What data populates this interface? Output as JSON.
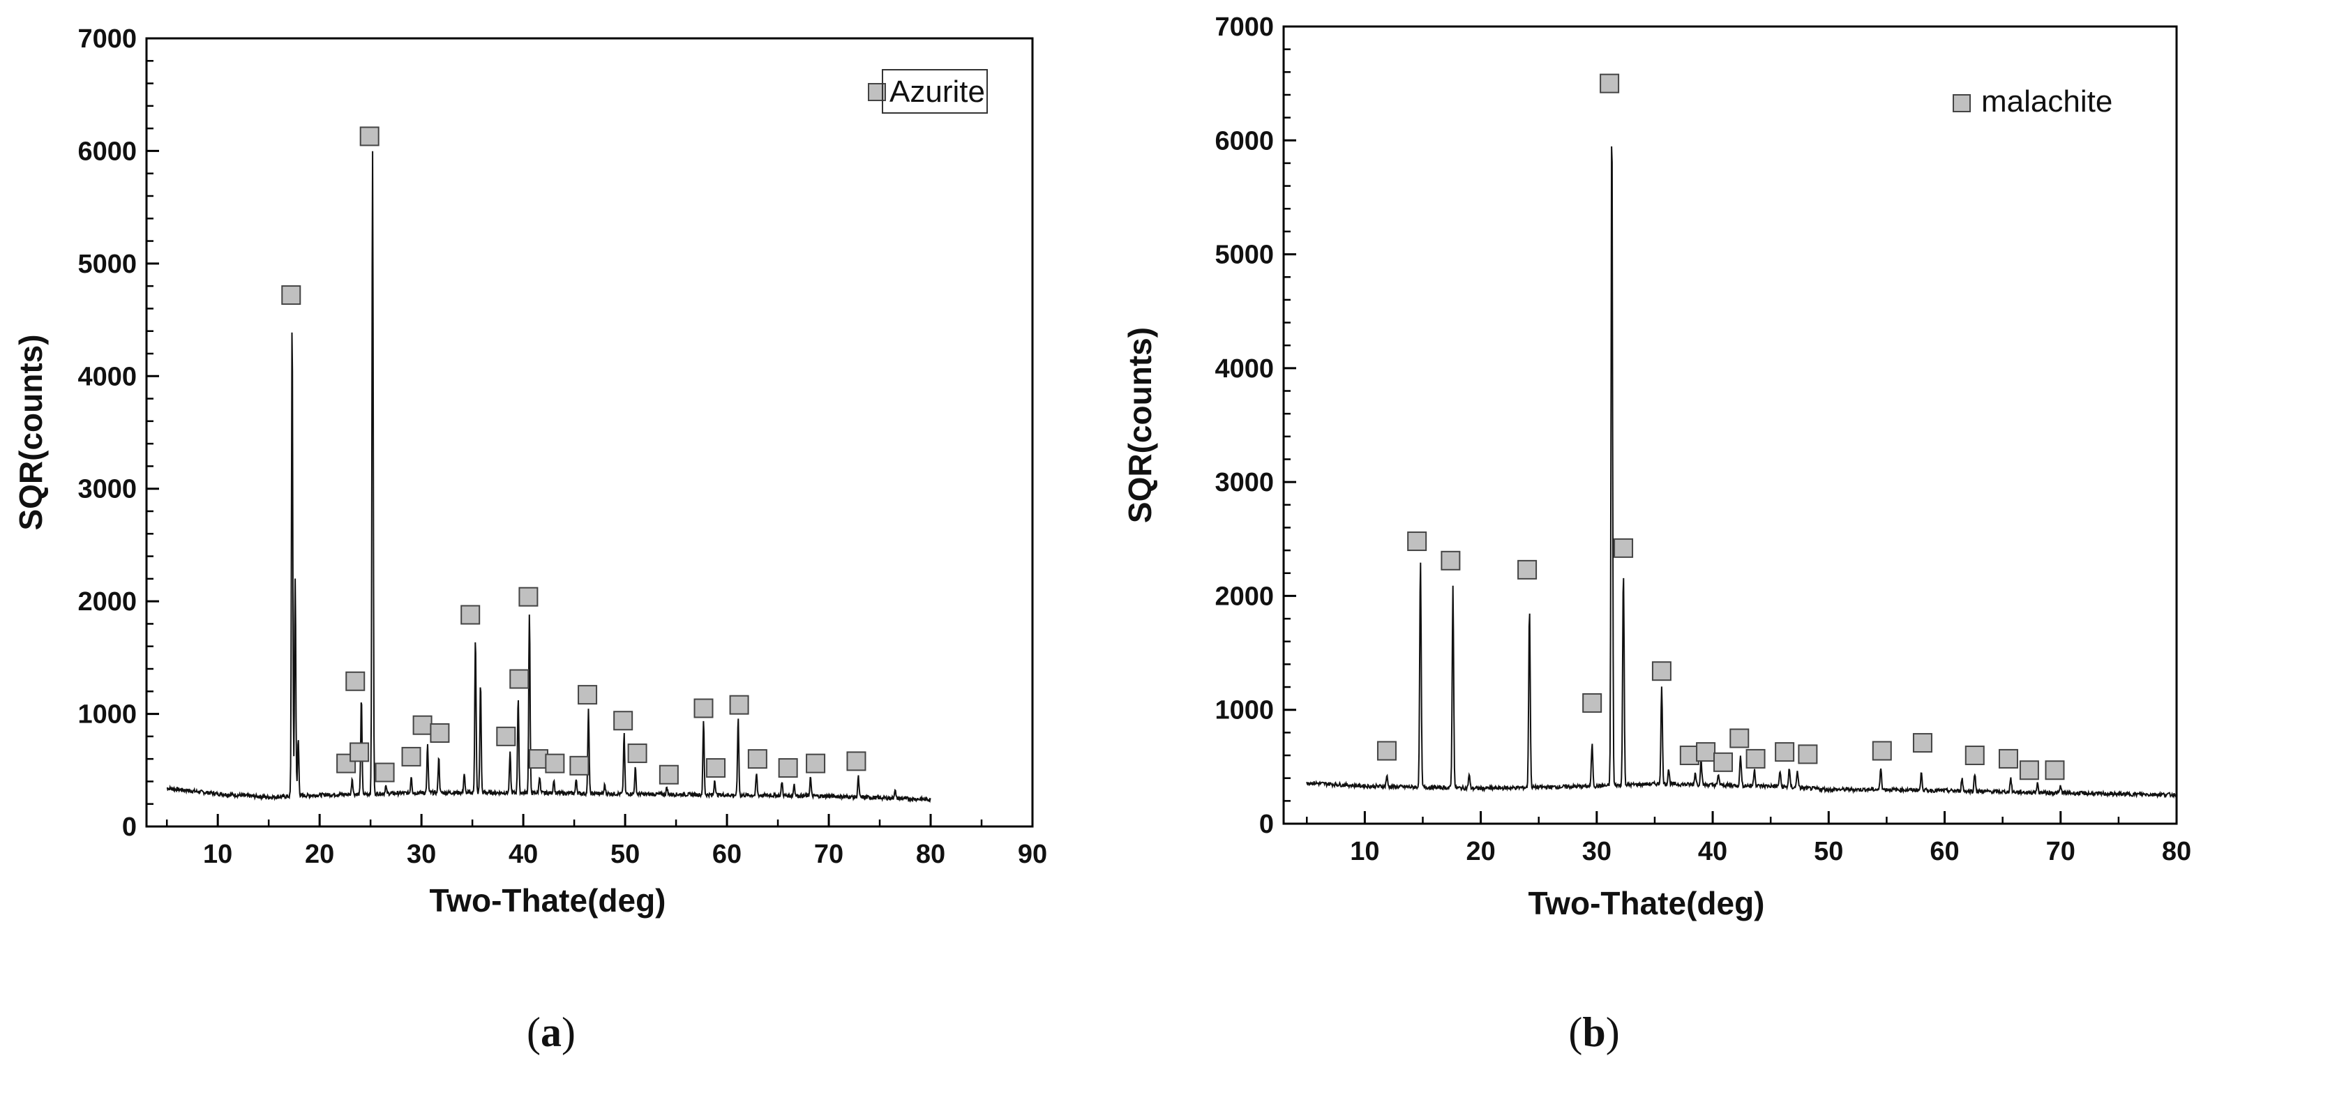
{
  "chart_data": [
    {
      "type": "line",
      "panel_label": "a",
      "xlabel": "Two-Thate(deg)",
      "ylabel": "SQR(counts)",
      "xlim": [
        3,
        90
      ],
      "ylim": [
        0,
        7000
      ],
      "xticks": [
        10,
        20,
        30,
        40,
        50,
        60,
        70,
        80,
        90
      ],
      "yticks": [
        0,
        1000,
        2000,
        3000,
        4000,
        5000,
        6000,
        7000
      ],
      "grid": false,
      "legend": {
        "position": "top-right",
        "entries": [
          "Azurite"
        ],
        "boxed": true
      },
      "marker_color": "#c0c0c0",
      "baseline": [
        [
          5,
          340
        ],
        [
          10,
          290
        ],
        [
          15,
          260
        ],
        [
          20,
          280
        ],
        [
          30,
          300
        ],
        [
          40,
          300
        ],
        [
          50,
          290
        ],
        [
          60,
          280
        ],
        [
          70,
          270
        ],
        [
          80,
          240
        ]
      ],
      "peaks": [
        [
          17.3,
          4500
        ],
        [
          17.6,
          2200
        ],
        [
          17.9,
          780
        ],
        [
          23.2,
          430
        ],
        [
          24.1,
          1150
        ],
        [
          25.2,
          6000
        ],
        [
          26.5,
          360
        ],
        [
          29.0,
          450
        ],
        [
          30.6,
          720
        ],
        [
          31.7,
          620
        ],
        [
          34.2,
          470
        ],
        [
          35.3,
          1680
        ],
        [
          35.8,
          1280
        ],
        [
          38.7,
          650
        ],
        [
          39.5,
          1150
        ],
        [
          40.6,
          1900
        ],
        [
          41.6,
          450
        ],
        [
          43.0,
          420
        ],
        [
          45.2,
          420
        ],
        [
          46.4,
          1030
        ],
        [
          48.0,
          370
        ],
        [
          49.9,
          820
        ],
        [
          51.0,
          520
        ],
        [
          54.1,
          350
        ],
        [
          57.7,
          940
        ],
        [
          58.8,
          420
        ],
        [
          61.1,
          960
        ],
        [
          62.9,
          470
        ],
        [
          65.4,
          400
        ],
        [
          66.6,
          380
        ],
        [
          68.2,
          440
        ],
        [
          72.9,
          440
        ],
        [
          76.5,
          330
        ]
      ],
      "markers": [
        [
          17.2,
          4720
        ],
        [
          22.6,
          560
        ],
        [
          23.5,
          1290
        ],
        [
          23.9,
          660
        ],
        [
          24.9,
          6130
        ],
        [
          26.4,
          480
        ],
        [
          29.0,
          620
        ],
        [
          30.1,
          900
        ],
        [
          31.8,
          830
        ],
        [
          34.8,
          1880
        ],
        [
          38.3,
          800
        ],
        [
          39.6,
          1310
        ],
        [
          40.5,
          2040
        ],
        [
          41.5,
          600
        ],
        [
          43.1,
          560
        ],
        [
          45.5,
          540
        ],
        [
          46.3,
          1170
        ],
        [
          49.8,
          940
        ],
        [
          51.2,
          650
        ],
        [
          54.3,
          460
        ],
        [
          57.7,
          1050
        ],
        [
          58.9,
          520
        ],
        [
          61.2,
          1080
        ],
        [
          63.0,
          600
        ],
        [
          66.0,
          520
        ],
        [
          68.7,
          560
        ],
        [
          72.7,
          580
        ]
      ]
    },
    {
      "type": "line",
      "panel_label": "b",
      "xlabel": "Two-Thate(deg)",
      "ylabel": "SQR(counts)",
      "xlim": [
        3,
        80
      ],
      "ylim": [
        0,
        7000
      ],
      "xticks": [
        10,
        20,
        30,
        40,
        50,
        60,
        70,
        80
      ],
      "yticks": [
        0,
        1000,
        2000,
        3000,
        4000,
        5000,
        6000,
        7000
      ],
      "grid": false,
      "legend": {
        "position": "top-right",
        "entries": [
          "malachite"
        ],
        "boxed": false
      },
      "marker_color": "#c0c0c0",
      "baseline": [
        [
          5,
          360
        ],
        [
          10,
          330
        ],
        [
          15,
          320
        ],
        [
          20,
          310
        ],
        [
          25,
          320
        ],
        [
          30,
          330
        ],
        [
          35,
          350
        ],
        [
          40,
          340
        ],
        [
          45,
          330
        ],
        [
          50,
          300
        ],
        [
          55,
          300
        ],
        [
          60,
          290
        ],
        [
          65,
          280
        ],
        [
          70,
          270
        ],
        [
          75,
          260
        ],
        [
          80,
          255
        ]
      ],
      "peaks": [
        [
          11.9,
          420
        ],
        [
          14.8,
          2300
        ],
        [
          17.6,
          2080
        ],
        [
          19.0,
          430
        ],
        [
          24.2,
          1900
        ],
        [
          29.6,
          700
        ],
        [
          31.3,
          6230
        ],
        [
          32.3,
          2220
        ],
        [
          35.6,
          1200
        ],
        [
          36.2,
          480
        ],
        [
          38.5,
          450
        ],
        [
          39.0,
          560
        ],
        [
          40.5,
          430
        ],
        [
          42.4,
          600
        ],
        [
          43.6,
          480
        ],
        [
          45.8,
          460
        ],
        [
          46.6,
          480
        ],
        [
          47.3,
          470
        ],
        [
          54.5,
          490
        ],
        [
          58.0,
          450
        ],
        [
          61.5,
          400
        ],
        [
          62.6,
          440
        ],
        [
          65.7,
          400
        ],
        [
          68.0,
          350
        ],
        [
          70.0,
          330
        ]
      ],
      "markers": [
        [
          11.9,
          640
        ],
        [
          14.5,
          2480
        ],
        [
          17.4,
          2310
        ],
        [
          24.0,
          2230
        ],
        [
          29.6,
          1060
        ],
        [
          31.1,
          6500
        ],
        [
          32.3,
          2420
        ],
        [
          35.6,
          1340
        ],
        [
          38.0,
          600
        ],
        [
          39.4,
          630
        ],
        [
          40.9,
          540
        ],
        [
          42.3,
          750
        ],
        [
          43.7,
          570
        ],
        [
          46.2,
          630
        ],
        [
          48.2,
          610
        ],
        [
          54.6,
          640
        ],
        [
          58.1,
          710
        ],
        [
          62.6,
          600
        ],
        [
          65.5,
          570
        ],
        [
          67.3,
          470
        ],
        [
          69.5,
          470
        ]
      ]
    }
  ]
}
